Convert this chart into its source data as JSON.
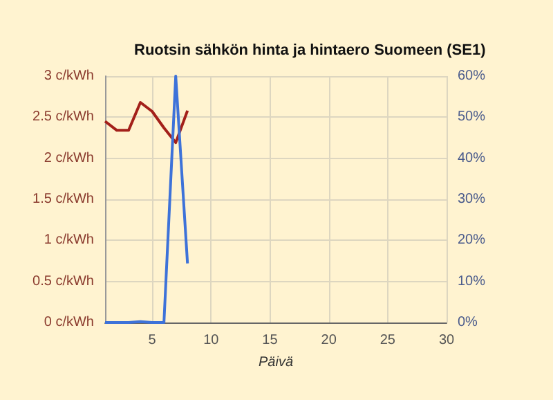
{
  "chart_data": {
    "type": "line",
    "title": "Ruotsin sähkön hinta ja hintaero Suomeen (SE1)",
    "xlabel": "Päivä",
    "x": [
      1,
      2,
      3,
      4,
      5,
      6,
      7,
      8
    ],
    "series": [
      {
        "color": "#a3201a",
        "values": [
          2.45,
          2.34,
          2.34,
          2.68,
          2.57,
          2.37,
          2.19,
          2.58
        ]
      },
      {
        "color": "#3d72d9",
        "axis": "y2",
        "values": [
          0,
          0,
          0,
          0.2,
          0,
          0,
          60,
          14.4
        ]
      }
    ],
    "xlim": [
      1,
      30
    ],
    "xticks": [
      5,
      10,
      15,
      20,
      25,
      30
    ],
    "ylim": [
      0,
      3
    ],
    "yticks": [
      {
        "value": 0,
        "label": "0 c/kWh"
      },
      {
        "value": 0.5,
        "label": "0.5 c/kWh"
      },
      {
        "value": 1,
        "label": "1 c/kWh"
      },
      {
        "value": 1.5,
        "label": "1.5 c/kWh"
      },
      {
        "value": 2,
        "label": "2 c/kWh"
      },
      {
        "value": 2.5,
        "label": "2.5 c/kWh"
      },
      {
        "value": 3,
        "label": "3 c/kWh"
      }
    ],
    "y2lim": [
      0,
      60
    ],
    "y2ticks": [
      {
        "value": 0,
        "label": "0%"
      },
      {
        "value": 10,
        "label": "10%"
      },
      {
        "value": 20,
        "label": "20%"
      },
      {
        "value": 30,
        "label": "30%"
      },
      {
        "value": 40,
        "label": "40%"
      },
      {
        "value": 50,
        "label": "50%"
      },
      {
        "value": 60,
        "label": "60%"
      }
    ],
    "grid": true,
    "marker": "none",
    "line_style": "solid"
  }
}
